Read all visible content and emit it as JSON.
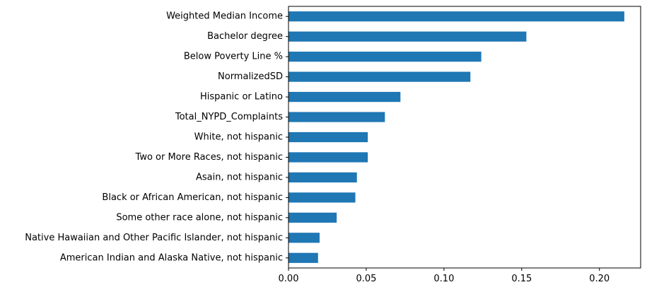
{
  "chart_data": {
    "type": "bar",
    "orientation": "horizontal",
    "categories": [
      "Weighted Median Income",
      "Bachelor degree",
      "Below Poverty Line %",
      "NormalizedSD",
      "Hispanic or Latino",
      "Total_NYPD_Complaints",
      "White, not hispanic",
      "Two or More Races, not hispanic",
      "Asain, not hispanic",
      "Black or African American, not hispanic",
      "Some other race alone, not hispanic",
      "Native Hawaiian and Other Pacific Islander, not hispanic",
      "American Indian and Alaska Native, not hispanic"
    ],
    "values": [
      0.216,
      0.153,
      0.124,
      0.117,
      0.072,
      0.062,
      0.051,
      0.051,
      0.044,
      0.043,
      0.031,
      0.02,
      0.019
    ],
    "title": "",
    "xlabel": "",
    "ylabel": "",
    "xlim": [
      0,
      0.2265
    ],
    "xticks": [
      0.0,
      0.05,
      0.1,
      0.15,
      0.2
    ],
    "xtick_labels": [
      "0.00",
      "0.05",
      "0.10",
      "0.15",
      "0.20"
    ],
    "grid": false,
    "legend": false,
    "bar_color": "#1f77b4"
  }
}
